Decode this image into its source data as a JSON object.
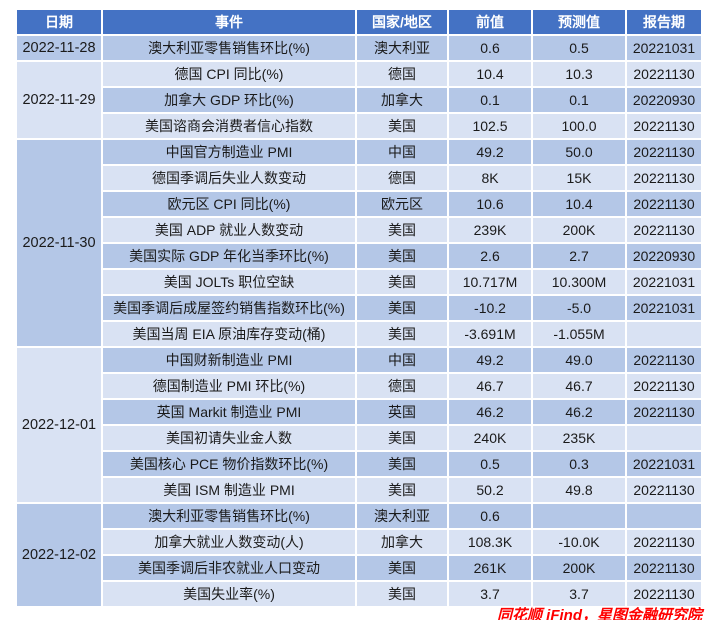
{
  "header": {
    "date": "日期",
    "event": "事件",
    "country": "国家/地区",
    "previous": "前值",
    "forecast": "预测值",
    "period": "报告期"
  },
  "groups": [
    {
      "date": "2022-11-28",
      "rows": [
        {
          "event": "澳大利亚零售销售环比(%)",
          "country": "澳大利亚",
          "previous": "0.6",
          "forecast": "0.5",
          "period": "20221031"
        }
      ]
    },
    {
      "date": "2022-11-29",
      "rows": [
        {
          "event": "德国 CPI 同比(%)",
          "country": "德国",
          "previous": "10.4",
          "forecast": "10.3",
          "period": "20221130"
        },
        {
          "event": "加拿大 GDP 环比(%)",
          "country": "加拿大",
          "previous": "0.1",
          "forecast": "0.1",
          "period": "20220930"
        },
        {
          "event": "美国谘商会消费者信心指数",
          "country": "美国",
          "previous": "102.5",
          "forecast": "100.0",
          "period": "20221130"
        }
      ]
    },
    {
      "date": "2022-11-30",
      "rows": [
        {
          "event": "中国官方制造业 PMI",
          "country": "中国",
          "previous": "49.2",
          "forecast": "50.0",
          "period": "20221130"
        },
        {
          "event": "德国季调后失业人数变动",
          "country": "德国",
          "previous": "8K",
          "forecast": "15K",
          "period": "20221130"
        },
        {
          "event": "欧元区 CPI 同比(%)",
          "country": "欧元区",
          "previous": "10.6",
          "forecast": "10.4",
          "period": "20221130"
        },
        {
          "event": "美国 ADP 就业人数变动",
          "country": "美国",
          "previous": "239K",
          "forecast": "200K",
          "period": "20221130"
        },
        {
          "event": "美国实际 GDP 年化当季环比(%)",
          "country": "美国",
          "previous": "2.6",
          "forecast": "2.7",
          "period": "20220930"
        },
        {
          "event": "美国 JOLTs 职位空缺",
          "country": "美国",
          "previous": "10.717M",
          "forecast": "10.300M",
          "period": "20221031"
        },
        {
          "event": "美国季调后成屋签约销售指数环比(%)",
          "country": "美国",
          "previous": "-10.2",
          "forecast": "-5.0",
          "period": "20221031"
        },
        {
          "event": "美国当周 EIA 原油库存变动(桶)",
          "country": "美国",
          "previous": "-3.691M",
          "forecast": "-1.055M",
          "period": ""
        }
      ]
    },
    {
      "date": "2022-12-01",
      "rows": [
        {
          "event": "中国财新制造业 PMI",
          "country": "中国",
          "previous": "49.2",
          "forecast": "49.0",
          "period": "20221130"
        },
        {
          "event": "德国制造业 PMI 环比(%)",
          "country": "德国",
          "previous": "46.7",
          "forecast": "46.7",
          "period": "20221130"
        },
        {
          "event": "英国 Markit 制造业 PMI",
          "country": "英国",
          "previous": "46.2",
          "forecast": "46.2",
          "period": "20221130"
        },
        {
          "event": "美国初请失业金人数",
          "country": "美国",
          "previous": "240K",
          "forecast": "235K",
          "period": ""
        },
        {
          "event": "美国核心 PCE 物价指数环比(%)",
          "country": "美国",
          "previous": "0.5",
          "forecast": "0.3",
          "period": "20221031"
        },
        {
          "event": "美国 ISM 制造业 PMI",
          "country": "美国",
          "previous": "50.2",
          "forecast": "49.8",
          "period": "20221130"
        }
      ]
    },
    {
      "date": "2022-12-02",
      "rows": [
        {
          "event": "澳大利亚零售销售环比(%)",
          "country": "澳大利亚",
          "previous": "0.6",
          "forecast": "",
          "period": ""
        },
        {
          "event": "加拿大就业人数变动(人)",
          "country": "加拿大",
          "previous": "108.3K",
          "forecast": "-10.0K",
          "period": "20221130"
        },
        {
          "event": "美国季调后非农就业人口变动",
          "country": "美国",
          "previous": "261K",
          "forecast": "200K",
          "period": "20221130"
        },
        {
          "event": "美国失业率(%)",
          "country": "美国",
          "previous": "3.7",
          "forecast": "3.7",
          "period": "20221130"
        }
      ]
    }
  ],
  "footer": {
    "source": "同花顺 iFind，星图金融研究院"
  },
  "colors": {
    "header_bg": "#4472C4",
    "row_shade_dark": "#B4C7E7",
    "row_shade_light": "#D9E2F3",
    "footer_text": "#FF0000"
  }
}
